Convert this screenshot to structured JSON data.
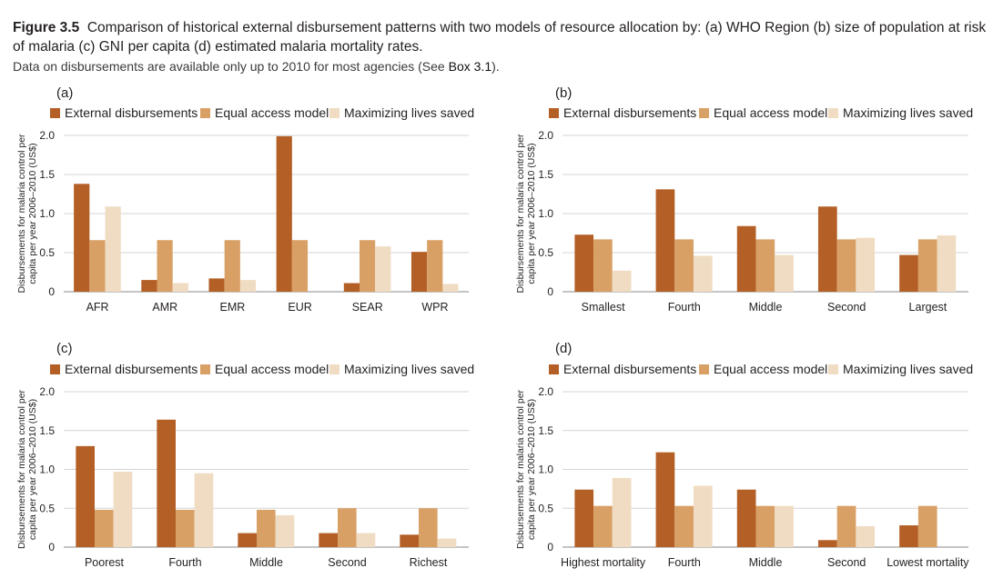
{
  "figure": {
    "number": "Figure 3.5",
    "title": "Comparison of historical external disbursement patterns with two models of resource allocation by: (a) WHO Region (b) size of population at risk of malaria (c) GNI per capita (d) estimated malaria mortality rates.",
    "note_prefix": "Data on disbursements are available only up to 2010 for most agencies (See ",
    "note_ref": "Box 3.1",
    "note_suffix": ")."
  },
  "colors": {
    "External disbursements": "#b35f26",
    "Equal access model": "#d9a066",
    "Maximizing lives saved": "#f0dcc2"
  },
  "chart_data": [
    {
      "type": "bar",
      "panel": "(a)",
      "categories": [
        "AFR",
        "AMR",
        "EMR",
        "EUR",
        "SEAR",
        "WPR"
      ],
      "series": [
        {
          "name": "External disbursements",
          "values": [
            1.38,
            0.15,
            0.17,
            1.99,
            0.11,
            0.51
          ]
        },
        {
          "name": "Equal access model",
          "values": [
            0.66,
            0.66,
            0.66,
            0.66,
            0.66,
            0.66
          ]
        },
        {
          "name": "Maximizing lives saved",
          "values": [
            1.09,
            0.11,
            0.15,
            0.0,
            0.58,
            0.1
          ]
        }
      ],
      "ylabel": "Disbursements for malaria control per capita per year 2006–2010 (US$)",
      "ylim": [
        0,
        2
      ],
      "yticks": [
        "0",
        "0.5",
        "1.0",
        "1.5",
        "2.0"
      ],
      "grid": true,
      "legend": "top"
    },
    {
      "type": "bar",
      "panel": "(b)",
      "categories": [
        "Smallest",
        "Fourth",
        "Middle",
        "Second",
        "Largest"
      ],
      "series": [
        {
          "name": "External disbursements",
          "values": [
            0.73,
            1.31,
            0.84,
            1.09,
            0.47
          ]
        },
        {
          "name": "Equal access model",
          "values": [
            0.67,
            0.67,
            0.67,
            0.67,
            0.67
          ]
        },
        {
          "name": "Maximizing lives saved",
          "values": [
            0.27,
            0.46,
            0.47,
            0.69,
            0.72
          ]
        }
      ],
      "ylabel": "Disbursements for malaria control per capita per year 2006–2010 (US$)",
      "ylim": [
        0,
        2
      ],
      "yticks": [
        "0",
        "0.5",
        "1.0",
        "1.5",
        "2.0"
      ],
      "grid": true,
      "legend": "top"
    },
    {
      "type": "bar",
      "panel": "(c)",
      "categories": [
        "Poorest",
        "Fourth",
        "Middle",
        "Second",
        "Richest"
      ],
      "series": [
        {
          "name": "External disbursements",
          "values": [
            1.3,
            1.64,
            0.18,
            0.18,
            0.16
          ]
        },
        {
          "name": "Equal access model",
          "values": [
            0.48,
            0.48,
            0.48,
            0.5,
            0.5
          ]
        },
        {
          "name": "Maximizing lives saved",
          "values": [
            0.97,
            0.95,
            0.41,
            0.18,
            0.11
          ]
        }
      ],
      "ylabel": "Disbursements for malaria control per capita per year 2006–2010 (US$)",
      "ylim": [
        0,
        2
      ],
      "yticks": [
        "0",
        "0.5",
        "1.0",
        "1.5",
        "2.0"
      ],
      "grid": true,
      "legend": "top"
    },
    {
      "type": "bar",
      "panel": "(d)",
      "categories": [
        "Highest mortality",
        "Fourth",
        "Middle",
        "Second",
        "Lowest mortality"
      ],
      "series": [
        {
          "name": "External disbursements",
          "values": [
            0.74,
            1.22,
            0.74,
            0.09,
            0.28
          ]
        },
        {
          "name": "Equal access model",
          "values": [
            0.53,
            0.53,
            0.53,
            0.53,
            0.53
          ]
        },
        {
          "name": "Maximizing lives saved",
          "values": [
            0.89,
            0.79,
            0.53,
            0.27,
            0.0
          ]
        }
      ],
      "ylabel": "Disbursements for malaria control per capita per year 2006–2010 (US$)",
      "ylim": [
        0,
        2
      ],
      "yticks": [
        "0",
        "0.5",
        "1.0",
        "1.5",
        "2.0"
      ],
      "grid": true,
      "legend": "top"
    }
  ]
}
